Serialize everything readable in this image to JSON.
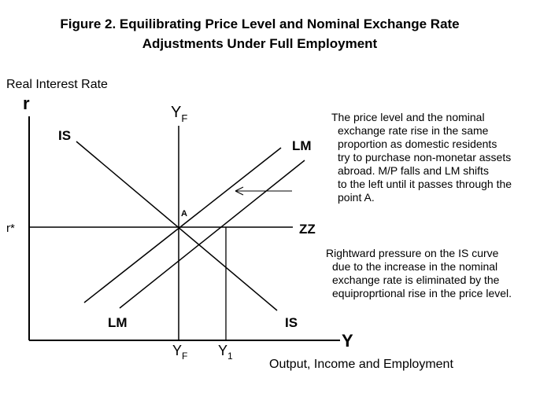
{
  "title": {
    "line1": "Figure 2.  Equilibrating Price Level and Nominal Exchange Rate",
    "line2": "Adjustments Under Full Employment"
  },
  "axes": {
    "y_label": "Real Interest Rate",
    "y_symbol": "r",
    "x_symbol": "Y",
    "x_label": "Output, Income and Employment"
  },
  "labels": {
    "yf": "Y",
    "yf_sub": "F",
    "y1": "Y",
    "y1_sub": "1",
    "r_star": "r*",
    "point_a": "A",
    "is": "IS",
    "lm": "LM",
    "zz": "ZZ"
  },
  "notes": {
    "top_first": "The price level and the nominal",
    "top_rest": [
      "exchange rate rise in the same",
      "proportion as domestic residents",
      "try to purchase non-monetar assets",
      "abroad.   M/P falls and LM shifts",
      "to the left until it passes through the",
      "point A."
    ],
    "bottom_first": "Rightward pressure on the IS curve",
    "bottom_rest": [
      "due to the increase in the nominal",
      "exchange rate is eliminated by the",
      "equiproprtional rise in the price level."
    ]
  }
}
